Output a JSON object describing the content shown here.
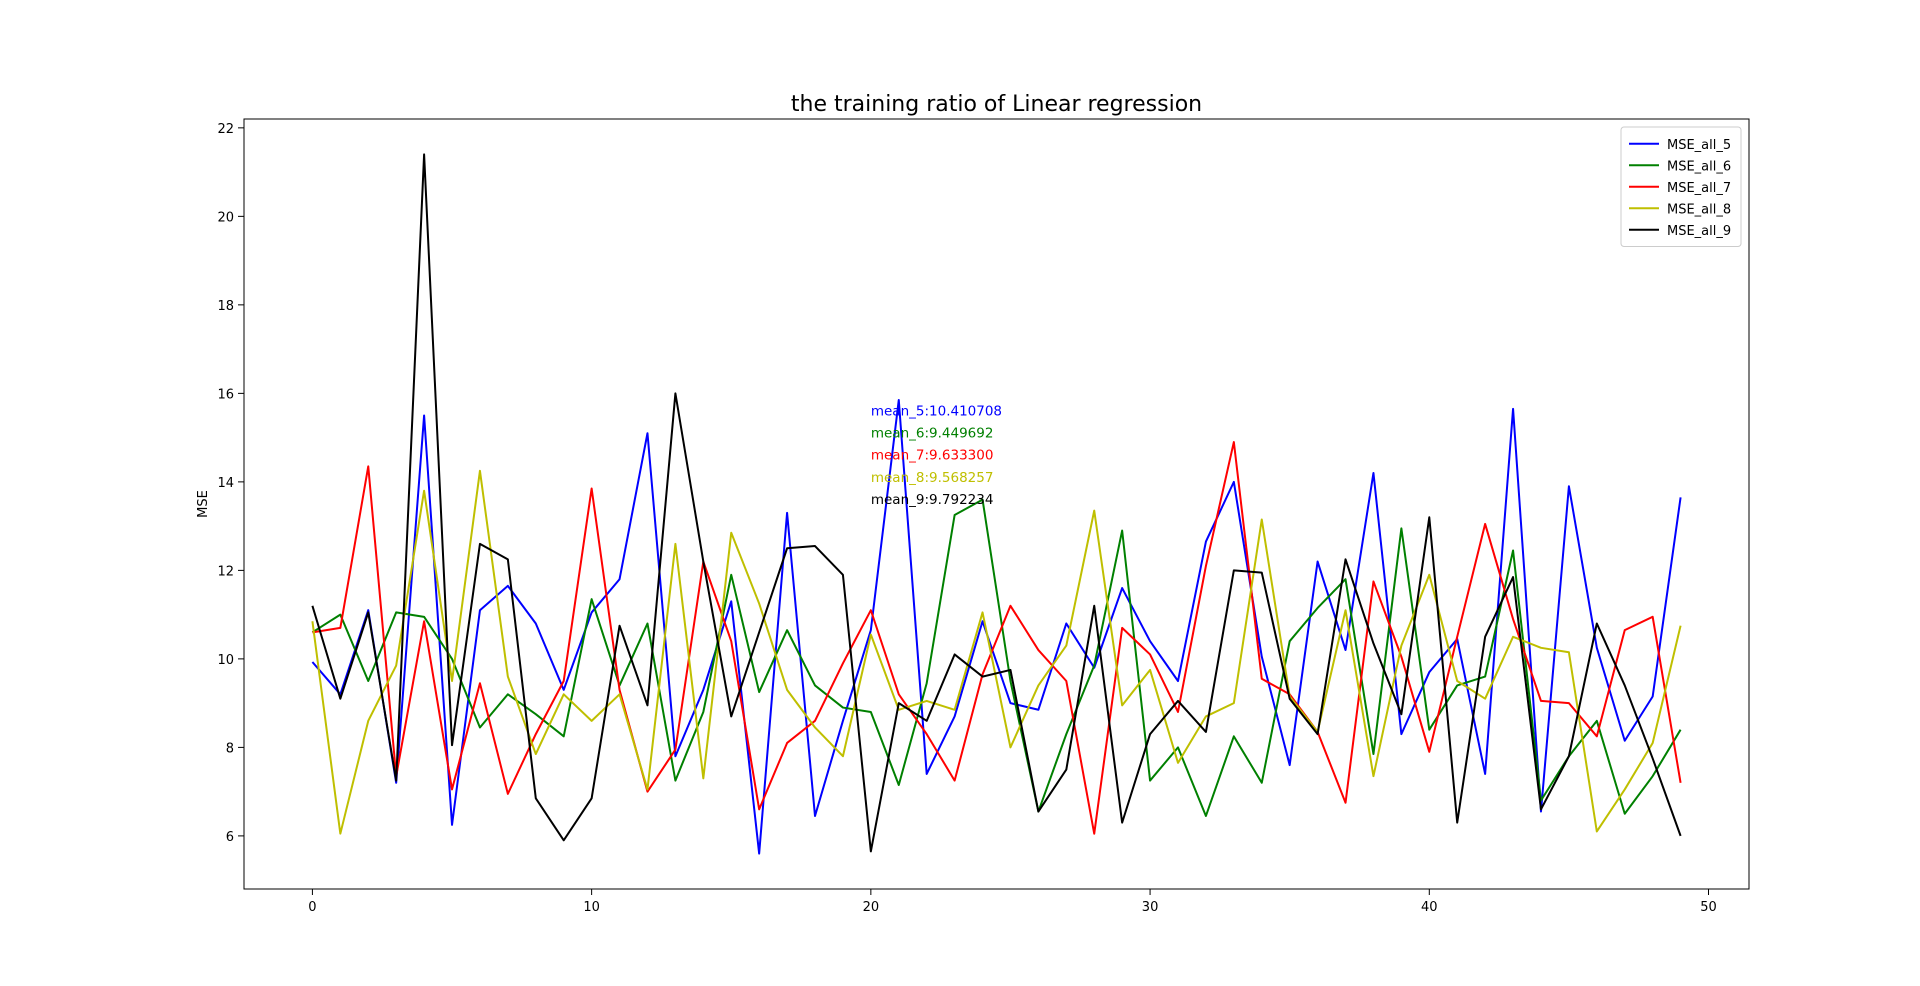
{
  "chart_data": {
    "type": "line",
    "title": "the training ratio of Linear regression",
    "xlabel": "",
    "ylabel": "MSE",
    "xlim": [
      -2.45,
      51.45
    ],
    "ylim": [
      4.8,
      22.2
    ],
    "xticks": [
      0,
      10,
      20,
      30,
      40,
      50
    ],
    "yticks": [
      6,
      8,
      10,
      12,
      14,
      16,
      18,
      20,
      22
    ],
    "grid": false,
    "legend_position": "top-right",
    "x": [
      0,
      1,
      2,
      3,
      4,
      5,
      6,
      7,
      8,
      9,
      10,
      11,
      12,
      13,
      14,
      15,
      16,
      17,
      18,
      19,
      20,
      21,
      22,
      23,
      24,
      25,
      26,
      27,
      28,
      29,
      30,
      31,
      32,
      33,
      34,
      35,
      36,
      37,
      38,
      39,
      40,
      41,
      42,
      43,
      44,
      45,
      46,
      47,
      48,
      49
    ],
    "series": [
      {
        "name": "MSE_all_5",
        "color": "#0000ff",
        "values": [
          9.93,
          9.2,
          11.1,
          7.2,
          15.5,
          6.25,
          11.1,
          11.65,
          10.8,
          9.3,
          11.05,
          11.8,
          15.1,
          7.8,
          9.3,
          11.3,
          5.6,
          13.3,
          6.45,
          8.6,
          10.65,
          15.85,
          7.4,
          8.7,
          10.85,
          9.0,
          8.85,
          10.8,
          9.8,
          11.6,
          10.4,
          9.5,
          12.65,
          14.0,
          10.05,
          7.6,
          12.2,
          10.2,
          14.2,
          8.3,
          9.7,
          10.45,
          7.4,
          15.65,
          6.55,
          13.9,
          10.25,
          8.15,
          9.15,
          13.65
        ]
      },
      {
        "name": "MSE_all_6",
        "color": "#008000",
        "values": [
          10.6,
          11.0,
          9.5,
          11.05,
          10.95,
          10.0,
          8.45,
          9.2,
          8.75,
          8.25,
          11.35,
          9.4,
          10.8,
          7.25,
          8.8,
          11.9,
          9.25,
          10.65,
          9.4,
          8.9,
          8.8,
          7.15,
          9.45,
          13.25,
          13.6,
          9.5,
          6.55,
          8.3,
          9.85,
          12.9,
          7.25,
          8.0,
          6.45,
          8.25,
          7.2,
          10.4,
          11.15,
          11.8,
          7.85,
          12.95,
          8.4,
          9.4,
          9.6,
          12.45,
          6.8,
          7.8,
          8.6,
          6.5,
          7.35,
          8.4
        ]
      },
      {
        "name": "MSE_all_7",
        "color": "#ff0000",
        "values": [
          10.6,
          10.7,
          14.35,
          7.35,
          10.85,
          7.05,
          9.45,
          6.95,
          8.3,
          9.5,
          13.85,
          9.3,
          7.0,
          7.95,
          12.2,
          10.4,
          6.6,
          8.1,
          8.6,
          9.9,
          11.1,
          9.2,
          8.3,
          7.25,
          9.65,
          11.2,
          10.2,
          9.5,
          6.05,
          10.7,
          10.1,
          8.8,
          12.1,
          14.9,
          9.55,
          9.2,
          8.35,
          6.75,
          11.75,
          10.05,
          7.9,
          10.5,
          13.05,
          10.9,
          9.05,
          9.0,
          8.25,
          10.65,
          10.95,
          7.2
        ]
      },
      {
        "name": "MSE_all_8",
        "color": "#bfbf00",
        "values": [
          10.85,
          6.05,
          8.6,
          9.85,
          13.8,
          9.5,
          14.25,
          9.6,
          7.85,
          9.2,
          8.6,
          9.2,
          7.05,
          12.6,
          7.3,
          12.85,
          11.25,
          9.3,
          8.45,
          7.8,
          10.55,
          8.85,
          9.05,
          8.85,
          11.05,
          8.0,
          9.4,
          10.3,
          13.35,
          8.95,
          9.75,
          7.65,
          8.7,
          9.0,
          13.15,
          9.15,
          8.35,
          11.1,
          7.35,
          10.3,
          11.9,
          9.5,
          9.1,
          10.5,
          10.25,
          10.15,
          6.1,
          7.05,
          8.1,
          10.75
        ]
      },
      {
        "name": "MSE_all_9",
        "color": "#000000",
        "values": [
          11.2,
          9.1,
          11.05,
          7.25,
          21.4,
          8.05,
          12.6,
          12.25,
          6.85,
          5.9,
          6.85,
          10.75,
          8.95,
          16.0,
          12.2,
          8.7,
          10.6,
          12.5,
          12.55,
          11.9,
          5.65,
          9.0,
          8.6,
          10.1,
          9.6,
          9.75,
          6.55,
          7.5,
          11.2,
          6.3,
          8.3,
          9.05,
          8.35,
          12.0,
          11.95,
          9.1,
          8.3,
          12.25,
          10.35,
          8.75,
          13.2,
          6.3,
          10.5,
          11.85,
          6.6,
          7.8,
          10.8,
          9.4,
          7.75,
          6.0
        ]
      }
    ],
    "annotations": [
      {
        "text": "mean_5:10.410708",
        "color": "#0000ff",
        "x": 20,
        "y": 15.5
      },
      {
        "text": "mean_6:9.449692",
        "color": "#008000",
        "x": 20,
        "y": 15.0
      },
      {
        "text": "mean_7:9.633300",
        "color": "#ff0000",
        "x": 20,
        "y": 14.5
      },
      {
        "text": "mean_8:9.568257",
        "color": "#bfbf00",
        "x": 20,
        "y": 14.0
      },
      {
        "text": "mean_9:9.792234",
        "color": "#000000",
        "x": 20,
        "y": 13.5
      }
    ]
  }
}
